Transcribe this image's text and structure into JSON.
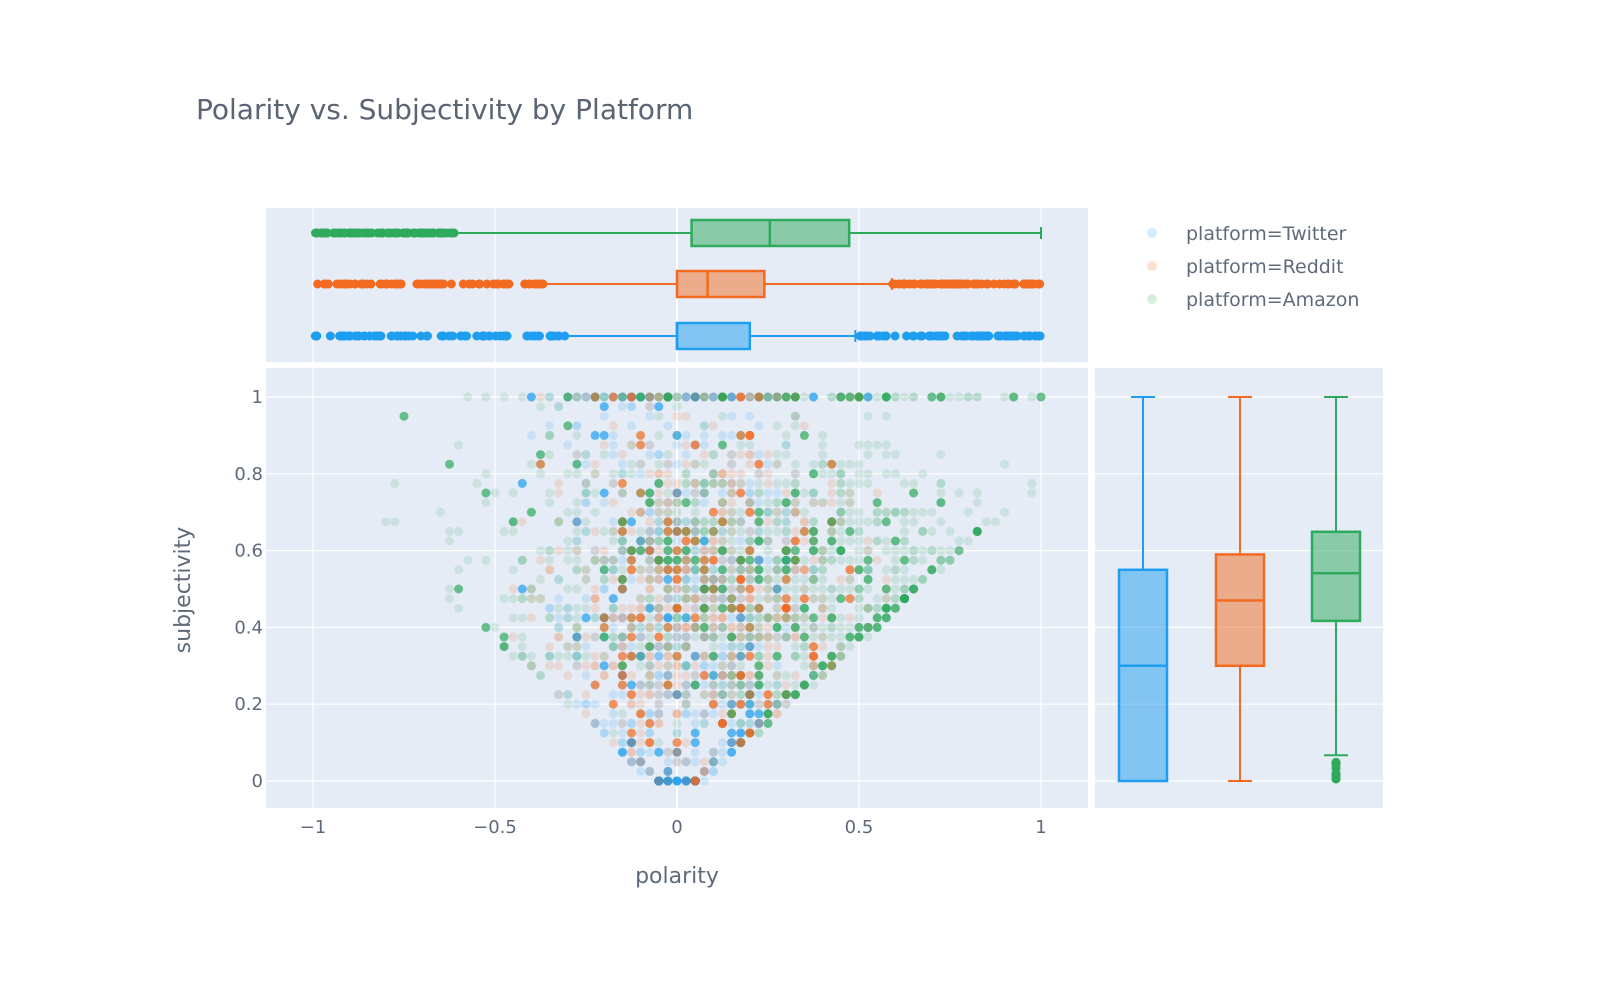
{
  "chart_data": {
    "type": "scatter",
    "title": "Polarity vs. Subjectivity by Platform",
    "xlabel": "polarity",
    "ylabel": "subjectivity",
    "xlim": [
      -1.1,
      1.13
    ],
    "ylim": [
      -0.07,
      1.07
    ],
    "grid": true,
    "legend_position": "top-right",
    "x_ticks": [
      {
        "value": -1,
        "label": "−1"
      },
      {
        "value": -0.5,
        "label": "−0.5"
      },
      {
        "value": 0,
        "label": "0"
      },
      {
        "value": 0.5,
        "label": "0.5"
      },
      {
        "value": 1,
        "label": "1"
      }
    ],
    "y_ticks": [
      {
        "value": 0,
        "label": "0"
      },
      {
        "value": 0.2,
        "label": "0.2"
      },
      {
        "value": 0.4,
        "label": "0.4"
      },
      {
        "value": 0.6,
        "label": "0.6"
      },
      {
        "value": 0.8,
        "label": "0.8"
      },
      {
        "value": 1,
        "label": "1"
      }
    ],
    "marginal_x": "box",
    "marginal_y": "box",
    "series": [
      {
        "name": "platform=Twitter",
        "color": "#1f9ef0",
        "polarity_box": {
          "lower_whisker": -0.3,
          "q1": 0,
          "median": 0,
          "q3": 0.2,
          "upper_whisker": 0.49,
          "outliers_low": [
            -1,
            -0.3
          ],
          "outliers_high": [
            0.49,
            1
          ]
        },
        "subjectivity_box": {
          "lower_whisker": 0,
          "q1": 0,
          "median": 0.3,
          "q3": 0.55,
          "upper_whisker": 1
        }
      },
      {
        "name": "platform=Reddit",
        "color": "#f26b21",
        "polarity_box": {
          "lower_whisker": -0.36,
          "q1": 0,
          "median": 0.084,
          "q3": 0.24,
          "upper_whisker": 0.59,
          "outliers_low": [
            -1,
            -0.36
          ],
          "outliers_high": [
            0.59,
            1
          ]
        },
        "subjectivity_box": {
          "lower_whisker": 0,
          "q1": 0.3,
          "median": 0.47,
          "q3": 0.59,
          "upper_whisker": 1
        }
      },
      {
        "name": "platform=Amazon",
        "color": "#2eaa5c",
        "polarity_box": {
          "lower_whisker": -0.6,
          "q1": 0.04,
          "median": 0.255,
          "q3": 0.473,
          "upper_whisker": 1,
          "outliers_low": [
            -1,
            -0.6
          ],
          "outliers_high": []
        },
        "subjectivity_box": {
          "lower_whisker": 0.067,
          "q1": 0.417,
          "median": 0.541,
          "q3": 0.649,
          "upper_whisker": 1,
          "outliers_low": [
            0,
            0.06
          ]
        }
      }
    ]
  }
}
